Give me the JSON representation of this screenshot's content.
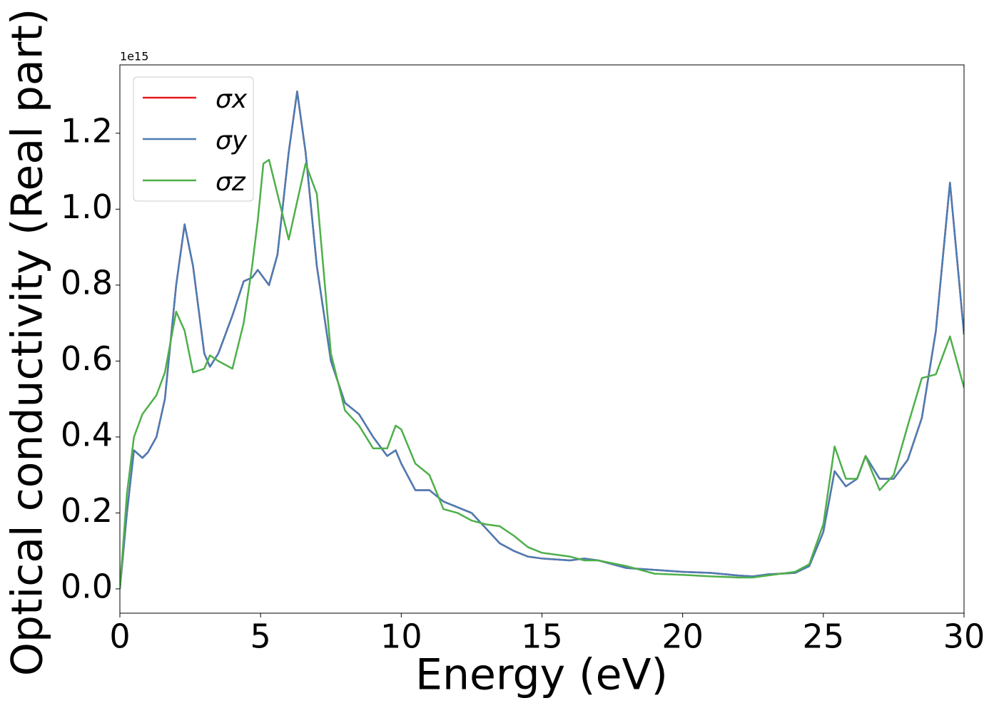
{
  "chart_data": {
    "type": "line",
    "x_label": "Energy (eV)",
    "y_label": "Optical conductivity (Real part)",
    "y_offset_label": "1e15",
    "legend": "upper left",
    "grid": false,
    "xlim": [
      0,
      30
    ],
    "xticks": [
      0,
      5,
      10,
      15,
      20,
      25,
      30
    ],
    "ylim": [
      -0.064,
      1.38
    ],
    "yticks": [
      {
        "value": 0,
        "label": "0.0"
      },
      0.2,
      0.4,
      0.6,
      0.8,
      {
        "value": 1,
        "label": "1.0"
      },
      1.2
    ],
    "x": [
      0,
      0.25,
      0.5,
      0.8,
      1.0,
      1.3,
      1.6,
      2.0,
      2.3,
      2.6,
      3.0,
      3.2,
      3.5,
      4.0,
      4.4,
      4.7,
      4.9,
      5.1,
      5.3,
      5.6,
      6.0,
      6.3,
      6.6,
      7.0,
      7.5,
      8.0,
      8.5,
      9.0,
      9.5,
      9.8,
      10.0,
      10.5,
      11.0,
      11.5,
      12.0,
      12.5,
      13.0,
      13.5,
      14.0,
      14.5,
      15,
      16,
      16.5,
      17,
      18,
      19,
      20,
      21,
      22,
      22.5,
      23,
      24,
      24.5,
      25,
      25.4,
      25.8,
      26.2,
      26.5,
      27,
      27.5,
      28,
      28.5,
      29,
      29.5,
      30
    ],
    "series": [
      {
        "name": "σx",
        "color": "#e41a1c",
        "values": [
          0.0,
          0.2,
          0.365,
          0.345,
          0.36,
          0.4,
          0.5,
          0.8,
          0.96,
          0.85,
          0.62,
          0.585,
          0.62,
          0.72,
          0.81,
          0.82,
          0.84,
          0.82,
          0.8,
          0.88,
          1.15,
          1.31,
          1.15,
          0.85,
          0.6,
          0.49,
          0.46,
          0.4,
          0.35,
          0.365,
          0.33,
          0.26,
          0.26,
          0.23,
          0.215,
          0.2,
          0.16,
          0.12,
          0.1,
          0.085,
          0.08,
          0.075,
          0.08,
          0.075,
          0.055,
          0.05,
          0.045,
          0.042,
          0.035,
          0.033,
          0.038,
          0.042,
          0.06,
          0.15,
          0.31,
          0.27,
          0.29,
          0.35,
          0.29,
          0.29,
          0.34,
          0.45,
          0.68,
          1.07,
          0.67
        ]
      },
      {
        "name": "σy",
        "color": "#4a7db5",
        "values": [
          0.0,
          0.2,
          0.365,
          0.345,
          0.36,
          0.4,
          0.5,
          0.8,
          0.96,
          0.85,
          0.62,
          0.585,
          0.62,
          0.72,
          0.81,
          0.82,
          0.84,
          0.82,
          0.8,
          0.88,
          1.15,
          1.31,
          1.15,
          0.85,
          0.6,
          0.49,
          0.46,
          0.4,
          0.35,
          0.365,
          0.33,
          0.26,
          0.26,
          0.23,
          0.215,
          0.2,
          0.16,
          0.12,
          0.1,
          0.085,
          0.08,
          0.075,
          0.08,
          0.075,
          0.055,
          0.05,
          0.045,
          0.042,
          0.035,
          0.033,
          0.038,
          0.042,
          0.06,
          0.15,
          0.31,
          0.27,
          0.29,
          0.35,
          0.29,
          0.29,
          0.34,
          0.45,
          0.68,
          1.07,
          0.67
        ]
      },
      {
        "name": "σz",
        "color": "#4daf4a",
        "values": [
          0.0,
          0.25,
          0.4,
          0.46,
          0.48,
          0.51,
          0.57,
          0.73,
          0.68,
          0.57,
          0.58,
          0.615,
          0.6,
          0.58,
          0.7,
          0.85,
          0.97,
          1.12,
          1.13,
          1.04,
          0.92,
          1.02,
          1.12,
          1.04,
          0.62,
          0.47,
          0.43,
          0.37,
          0.37,
          0.43,
          0.42,
          0.33,
          0.3,
          0.21,
          0.2,
          0.18,
          0.17,
          0.165,
          0.14,
          0.11,
          0.095,
          0.085,
          0.075,
          0.075,
          0.06,
          0.04,
          0.037,
          0.033,
          0.03,
          0.03,
          0.035,
          0.045,
          0.065,
          0.17,
          0.375,
          0.29,
          0.29,
          0.35,
          0.26,
          0.3,
          0.43,
          0.555,
          0.565,
          0.665,
          0.53
        ]
      }
    ]
  }
}
